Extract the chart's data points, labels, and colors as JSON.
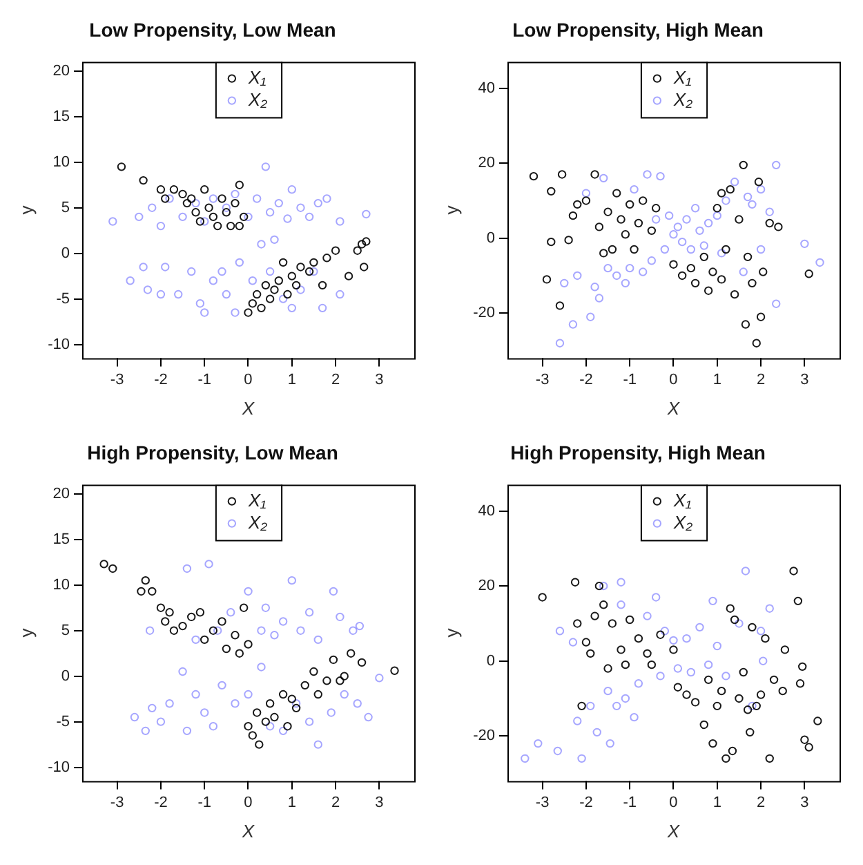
{
  "chart_data": [
    {
      "type": "scatter",
      "title": "Low Propensity, Low Mean",
      "xlabel": "X",
      "ylabel": "y",
      "xlim": [
        -3.8,
        3.8
      ],
      "xticks": [
        -3,
        -2,
        -1,
        0,
        1,
        2,
        3
      ],
      "ylim": [
        -11.5,
        21
      ],
      "yticks": [
        -10,
        -5,
        0,
        5,
        10,
        15,
        20
      ],
      "legend": "top",
      "marker": "circle",
      "grid": false,
      "series": [
        {
          "name": "X₁",
          "color": "#000000",
          "x": [
            -2.9,
            -2.4,
            -2,
            -1.9,
            -1.7,
            -1.5,
            -1.4,
            -1.3,
            -1.2,
            -1.1,
            -1,
            -0.9,
            -0.8,
            -0.7,
            -0.6,
            -0.5,
            -0.4,
            -0.3,
            -0.2,
            -0.2,
            -0.1,
            0,
            0.1,
            0.2,
            0.3,
            0.4,
            0.5,
            0.6,
            0.7,
            0.8,
            0.9,
            1,
            1.1,
            1.2,
            1.4,
            1.5,
            1.7,
            1.8,
            2,
            2.3,
            2.5,
            2.6,
            2.7,
            2.65
          ],
          "values": [
            9.5,
            8,
            7,
            6,
            7,
            6.5,
            5.5,
            6,
            4.5,
            3.5,
            7,
            5,
            4,
            3,
            6,
            4.5,
            3,
            5.5,
            7.5,
            3,
            4,
            -6.5,
            -5.5,
            -4.5,
            -6,
            -3.5,
            -5,
            -4,
            -3,
            -1,
            -4.5,
            -2.5,
            -3.5,
            -1.5,
            -2,
            -1,
            -3.5,
            -0.5,
            0.3,
            -2.5,
            0.3,
            1,
            1.3,
            -1.5
          ]
        },
        {
          "name": "X₂",
          "color": "#6b6bff",
          "x": [
            -3.1,
            -2.5,
            -2.2,
            -2,
            -1.8,
            -1.5,
            -1.2,
            -1,
            -0.8,
            -0.5,
            -0.3,
            0,
            0.2,
            0.4,
            0.5,
            0.7,
            0.9,
            1,
            1.2,
            1.4,
            1.6,
            1.8,
            2.1,
            2.7,
            -2.7,
            -2.4,
            -2.3,
            -2,
            -1.9,
            -1.6,
            -1.3,
            -1.1,
            -1,
            -0.8,
            -0.6,
            -0.5,
            -0.3,
            -0.2,
            0.1,
            0.3,
            0.5,
            0.6,
            0.8,
            1,
            1.2,
            1.5,
            1.7,
            2.1
          ],
          "values": [
            3.5,
            4,
            5,
            3,
            6,
            4,
            5.5,
            3.5,
            6,
            5,
            6.5,
            4,
            6,
            9.5,
            4.5,
            5.5,
            3.8,
            7,
            5,
            4,
            5.5,
            6,
            3.5,
            4.3,
            -3,
            -1.5,
            -4,
            -4.5,
            -1.5,
            -4.5,
            -2,
            -5.5,
            -6.5,
            -3,
            -2,
            -4.5,
            -6.5,
            -1,
            -3,
            1,
            -2,
            1.5,
            -5,
            -6,
            -4,
            -2,
            -6,
            -4.5
          ]
        }
      ]
    },
    {
      "type": "scatter",
      "title": "Low Propensity, High Mean",
      "xlabel": "X",
      "ylabel": "y",
      "xlim": [
        -3.8,
        3.8
      ],
      "xticks": [
        -3,
        -2,
        -1,
        0,
        1,
        2,
        3
      ],
      "ylim": [
        -32,
        47
      ],
      "yticks": [
        -20,
        0,
        20,
        40
      ],
      "legend": "top",
      "marker": "circle",
      "grid": false,
      "series": [
        {
          "name": "X₁",
          "color": "#000000",
          "x": [
            -3.2,
            -2.9,
            -2.8,
            -2.8,
            -2.6,
            -2.55,
            -2.4,
            -2.3,
            -2.2,
            -2,
            -1.8,
            -1.7,
            -1.6,
            -1.5,
            -1.4,
            -1.3,
            -1.2,
            -1.1,
            -1,
            -0.9,
            -0.8,
            -0.7,
            -0.5,
            -0.4,
            0,
            0.2,
            0.4,
            0.5,
            0.7,
            0.8,
            0.9,
            1,
            1.1,
            1.2,
            1.3,
            1.1,
            1.4,
            1.5,
            1.6,
            1.65,
            1.7,
            1.8,
            1.9,
            1.95,
            2,
            2.05,
            2.2,
            2.4,
            3.1
          ],
          "values": [
            16.5,
            -11,
            12.5,
            -1,
            -18,
            17,
            -0.5,
            6,
            9,
            10,
            17,
            3,
            -4,
            7,
            -3,
            12,
            5,
            1,
            9,
            -3,
            4,
            10,
            2,
            8,
            -7,
            -10,
            -8,
            -12,
            -5,
            -14,
            -9,
            8,
            -11,
            -3,
            13,
            12,
            -15,
            5,
            19.5,
            -23,
            -5,
            -12,
            -28,
            15,
            -21,
            -9,
            4,
            3,
            -9.5
          ]
        },
        {
          "name": "X₂",
          "color": "#6b6bff",
          "x": [
            -2.6,
            -2.5,
            -2.3,
            -2.2,
            -2,
            -1.9,
            -1.8,
            -1.7,
            -1.6,
            -1.5,
            -1.3,
            -1.1,
            -1,
            -0.9,
            -0.7,
            -0.6,
            -0.5,
            -0.4,
            -0.3,
            -0.2,
            -0.1,
            0,
            0.1,
            0.2,
            0.3,
            0.4,
            0.5,
            0.6,
            0.7,
            0.8,
            1,
            1.1,
            1.2,
            1.4,
            1.6,
            1.7,
            1.8,
            2,
            2,
            2.2,
            2.35,
            2.35,
            3,
            3.35
          ],
          "values": [
            -28,
            -12,
            -23,
            -10,
            12,
            -21,
            -13,
            -16,
            16,
            -8,
            -10,
            -12,
            -8,
            13,
            -9,
            17,
            -6,
            5,
            16.5,
            -3,
            6,
            1,
            3,
            -1,
            5,
            -3,
            8,
            2,
            -2,
            4,
            6,
            -4,
            10,
            15,
            -9,
            11,
            9,
            13,
            -3,
            7,
            19.5,
            -17.5,
            -1.5,
            -6.5
          ]
        }
      ]
    },
    {
      "type": "scatter",
      "title": "High Propensity, Low Mean",
      "xlabel": "X",
      "ylabel": "y",
      "xlim": [
        -3.8,
        3.8
      ],
      "xticks": [
        -3,
        -2,
        -1,
        0,
        1,
        2,
        3
      ],
      "ylim": [
        -11.5,
        21
      ],
      "yticks": [
        -10,
        -5,
        0,
        5,
        10,
        15,
        20
      ],
      "legend": "top",
      "marker": "circle",
      "grid": false,
      "series": [
        {
          "name": "X₁",
          "color": "#000000",
          "x": [
            -3.3,
            -3.1,
            -2.45,
            -2.35,
            -2.2,
            -2,
            -1.9,
            -1.8,
            -1.7,
            -1.5,
            -1.3,
            -1.1,
            -1,
            -0.8,
            -0.6,
            -0.5,
            -0.3,
            -0.2,
            -0.1,
            0,
            0,
            0.1,
            0.2,
            0.25,
            0.4,
            0.5,
            0.6,
            0.8,
            0.9,
            1,
            1.1,
            1.3,
            1.5,
            1.6,
            1.8,
            1.95,
            2.1,
            2.2,
            2.35,
            2.6,
            3.35
          ],
          "values": [
            12.3,
            11.8,
            9.3,
            10.5,
            9.3,
            7.5,
            6,
            7,
            5,
            5.5,
            6.5,
            7,
            4,
            5,
            6,
            3,
            4.5,
            2.5,
            7.5,
            3.5,
            -5.5,
            -6.5,
            -4,
            -7.5,
            -5,
            -3,
            -4.5,
            -2,
            -5.5,
            -2.5,
            -3.5,
            -1,
            0.5,
            -2,
            -0.5,
            1.8,
            -0.5,
            0,
            2.5,
            1.5,
            0.6
          ]
        },
        {
          "name": "X₂",
          "color": "#6b6bff",
          "x": [
            -2.6,
            -2.35,
            -2.2,
            -2,
            -1.8,
            -1.5,
            -1.4,
            -1.2,
            -1,
            -0.8,
            -0.6,
            -0.3,
            0,
            0.3,
            0.5,
            0.8,
            1.1,
            1.4,
            1.6,
            1.9,
            2.2,
            2.5,
            2.75,
            3,
            -2.25,
            -1.4,
            -1.2,
            -0.9,
            -0.7,
            -0.4,
            0,
            0.3,
            0.4,
            0.6,
            0.8,
            1,
            1.2,
            1.4,
            1.6,
            1.95,
            2.1,
            2.4,
            2.55
          ],
          "values": [
            -4.5,
            -6,
            -3.5,
            -5,
            -3,
            0.5,
            -6,
            -2,
            -4,
            -5.5,
            -1,
            -3,
            -2,
            1,
            -5.5,
            -6,
            -3,
            -5,
            -7.5,
            -4,
            -2,
            -3,
            -4.5,
            -0.2,
            5,
            11.8,
            4,
            12.3,
            5,
            7,
            9.3,
            5,
            7.5,
            4.5,
            6,
            10.5,
            5,
            7,
            4,
            9.3,
            6.5,
            5,
            5.5
          ]
        }
      ]
    },
    {
      "type": "scatter",
      "title": "High Propensity, High Mean",
      "xlabel": "X",
      "ylabel": "y",
      "xlim": [
        -3.8,
        3.8
      ],
      "xticks": [
        -3,
        -2,
        -1,
        0,
        1,
        2,
        3
      ],
      "ylim": [
        -32,
        47
      ],
      "yticks": [
        -20,
        0,
        20,
        40
      ],
      "legend": "top",
      "marker": "circle",
      "grid": false,
      "series": [
        {
          "name": "X₁",
          "color": "#000000",
          "x": [
            -3,
            -2.25,
            -2.2,
            -2.1,
            -2,
            -1.9,
            -1.8,
            -1.7,
            -1.6,
            -1.5,
            -1.4,
            -1.2,
            -1.1,
            -1,
            -0.8,
            -0.6,
            -0.5,
            -0.3,
            0,
            0.1,
            0.3,
            0.5,
            0.7,
            0.8,
            0.9,
            1,
            1.1,
            1.2,
            1.3,
            1.35,
            1.4,
            1.5,
            1.6,
            1.7,
            1.75,
            1.8,
            1.9,
            2,
            2.1,
            2.2,
            2.3,
            2.5,
            2.55,
            2.75,
            2.85,
            2.9,
            2.95,
            3,
            3.1,
            3.3
          ],
          "values": [
            17,
            21,
            10,
            -12,
            5,
            2,
            12,
            20,
            15,
            -2,
            10,
            3,
            -1,
            11,
            6,
            2,
            -1,
            7,
            3,
            -7,
            -9,
            -11,
            -17,
            -5,
            -22,
            -12,
            -8,
            -26,
            14,
            -24,
            11,
            -10,
            -3,
            -13,
            -19,
            9,
            -12,
            -9,
            6,
            -26,
            -5,
            -8,
            3,
            24,
            16,
            -6,
            -1.5,
            -21,
            -23,
            -16
          ]
        },
        {
          "name": "X₂",
          "color": "#6b6bff",
          "x": [
            -3.4,
            -3.1,
            -2.65,
            -2.6,
            -2.3,
            -2.2,
            -2.1,
            -1.9,
            -1.75,
            -1.6,
            -1.5,
            -1.45,
            -1.3,
            -1.2,
            -1.1,
            -1.2,
            -0.9,
            -0.8,
            -0.6,
            -0.4,
            -0.3,
            -0.2,
            0,
            0.1,
            0.3,
            0.4,
            0.6,
            0.8,
            0.9,
            1,
            1.2,
            1.5,
            1.65,
            1.8,
            2,
            2.2,
            2.05
          ],
          "values": [
            -26,
            -22,
            -24,
            8,
            5,
            -16,
            -26,
            -12,
            -19,
            20,
            -8,
            -22,
            -12,
            21,
            -10,
            15,
            -15,
            -6,
            12,
            17,
            -4,
            8,
            5.5,
            -2,
            6,
            -3,
            9,
            -1,
            16,
            4,
            -4,
            10,
            24,
            -12,
            8,
            14,
            0
          ]
        }
      ]
    }
  ]
}
